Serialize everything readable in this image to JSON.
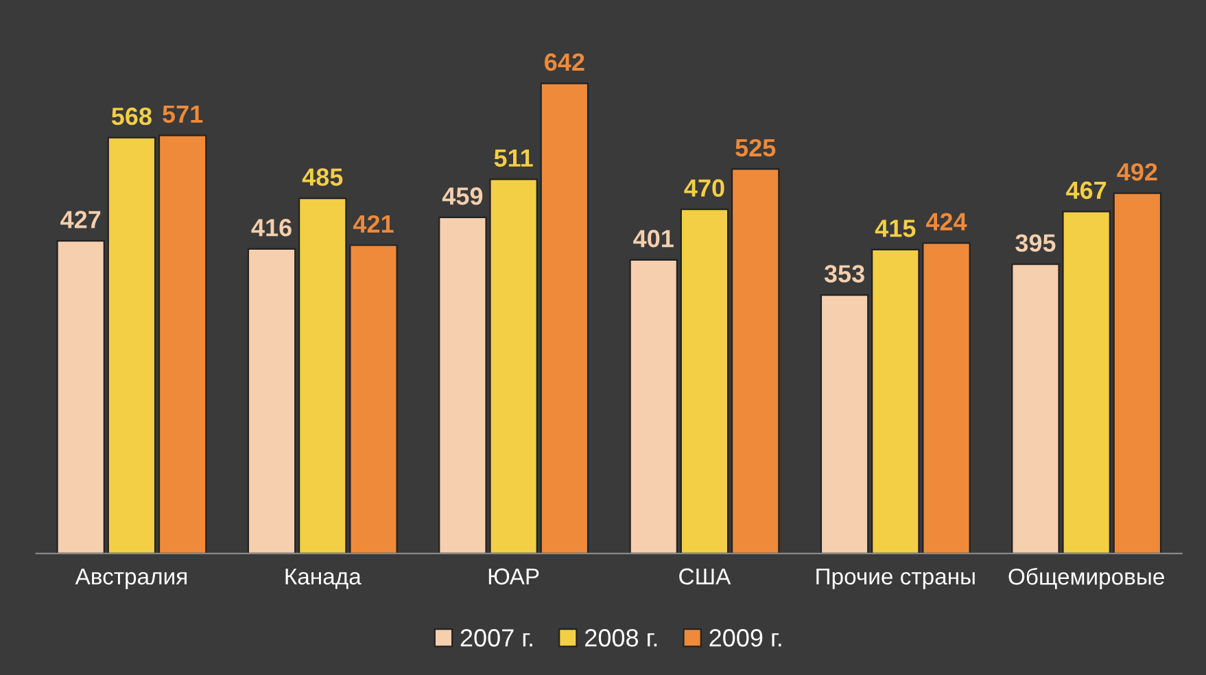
{
  "chart_data": {
    "type": "bar",
    "categories": [
      "Австралия",
      "Канада",
      "ЮАР",
      "США",
      "Прочие страны",
      "Общемировые"
    ],
    "series": [
      {
        "name": "2007 г.",
        "color": "#f5cfae",
        "values": [
          427,
          416,
          459,
          401,
          353,
          395
        ]
      },
      {
        "name": "2008 г.",
        "color": "#f3cf45",
        "values": [
          568,
          485,
          511,
          470,
          415,
          467
        ]
      },
      {
        "name": "2009 г.",
        "color": "#ef8a3a",
        "values": [
          571,
          421,
          642,
          525,
          424,
          492
        ]
      }
    ],
    "data_labels": true,
    "legend": "bottom",
    "grid": false
  }
}
